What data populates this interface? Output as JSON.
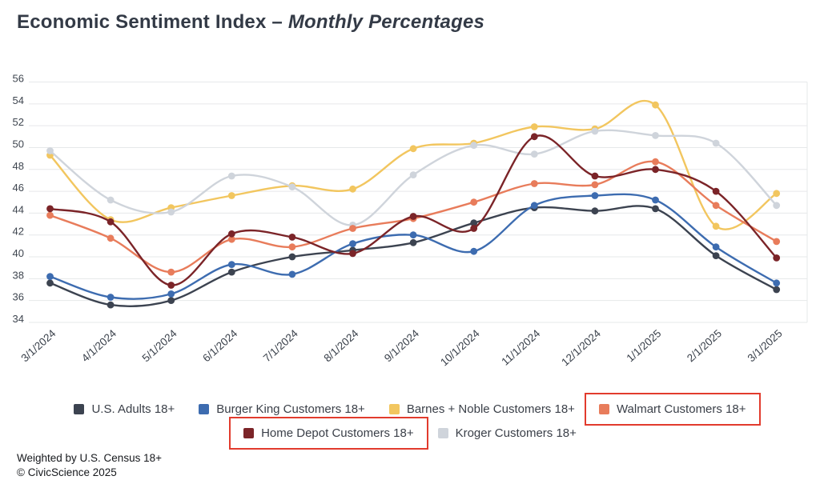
{
  "title": {
    "prefix": "Economic Sentiment Index",
    "dash": "–",
    "emphasis": "Monthly Percentages"
  },
  "footer": {
    "line1": "Weighted by U.S. Census 18+",
    "line2": "© CivicScience 2025"
  },
  "colors": {
    "background": "#ffffff",
    "gridline": "#e6e8ea",
    "axis_label": "#3e454f",
    "title_text": "#333a46",
    "legend_text": "#3a3f48",
    "highlight_box": "#e23b2d"
  },
  "chart_data": {
    "type": "line",
    "title": "Economic Sentiment Index – Monthly Percentages",
    "xlabel": "",
    "ylabel": "",
    "ylim": [
      34,
      56
    ],
    "ytick_step": 2,
    "ytick_labels": [
      "56",
      "54",
      "52",
      "50",
      "48",
      "46",
      "44",
      "42",
      "40",
      "38",
      "36",
      "34"
    ],
    "grid": "horizontal",
    "legend_position": "bottom",
    "marker": "circle",
    "categories": [
      "3/1/2024",
      "4/1/2024",
      "5/1/2024",
      "6/1/2024",
      "7/1/2024",
      "8/1/2024",
      "9/1/2024",
      "10/1/2024",
      "11/1/2024",
      "12/1/2024",
      "1/1/2025",
      "2/1/2025",
      "3/1/2025"
    ],
    "series": [
      {
        "name": "U.S. Adults 18+",
        "slug": "us-adults",
        "color": "#3c4350",
        "highlighted": false,
        "values": [
          37.6,
          35.6,
          36.0,
          38.6,
          40.0,
          40.6,
          41.3,
          43.1,
          44.5,
          44.2,
          44.4,
          40.1,
          37.0
        ]
      },
      {
        "name": "Burger King Customers 18+",
        "slug": "burger-king",
        "color": "#3d6cb0",
        "highlighted": false,
        "values": [
          38.2,
          36.3,
          36.6,
          39.3,
          38.4,
          41.2,
          42.0,
          40.5,
          44.7,
          45.6,
          45.2,
          40.9,
          37.6
        ]
      },
      {
        "name": "Barnes + Noble Customers 18+",
        "slug": "barnes-noble",
        "color": "#f2c65f",
        "highlighted": false,
        "values": [
          49.3,
          43.4,
          44.5,
          45.6,
          46.5,
          46.2,
          49.9,
          50.4,
          51.9,
          51.7,
          53.9,
          42.8,
          45.8
        ]
      },
      {
        "name": "Walmart Customers 18+",
        "slug": "walmart",
        "color": "#e87c5b",
        "highlighted": true,
        "values": [
          43.8,
          41.7,
          38.6,
          41.6,
          40.9,
          42.6,
          43.5,
          45.0,
          46.7,
          46.6,
          48.7,
          44.7,
          41.4
        ]
      },
      {
        "name": "Home Depot Customers 18+",
        "slug": "home-depot",
        "color": "#7b2428",
        "highlighted": true,
        "values": [
          44.4,
          43.2,
          37.4,
          42.1,
          41.8,
          40.3,
          43.7,
          42.6,
          51.0,
          47.4,
          48.0,
          46.0,
          39.9
        ]
      },
      {
        "name": "Kroger Customers 18+",
        "slug": "kroger",
        "color": "#cfd4db",
        "highlighted": false,
        "values": [
          49.7,
          45.2,
          44.1,
          47.4,
          46.4,
          42.9,
          47.5,
          50.2,
          49.4,
          51.5,
          51.1,
          50.4,
          44.7
        ]
      }
    ],
    "draw_order": [
      0,
      1,
      2,
      5,
      3,
      4
    ]
  },
  "legend": {
    "rows": [
      [
        0,
        1,
        2,
        3
      ],
      [
        4,
        5
      ]
    ]
  }
}
